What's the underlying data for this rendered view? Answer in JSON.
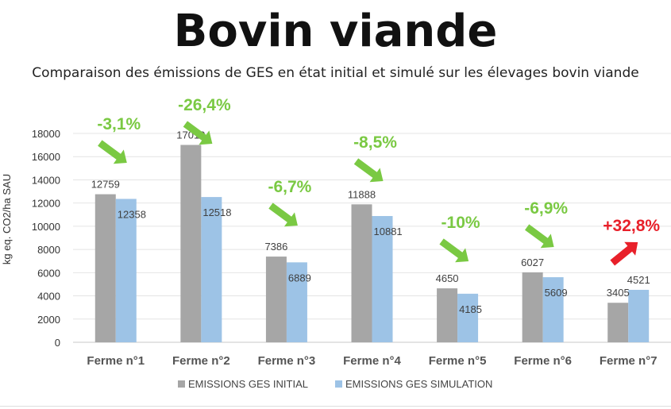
{
  "page": {
    "title": "Bovin viande",
    "subtitle": "Comparaison des émissions de GES en état initial et simulé sur les élevages bovin viande"
  },
  "colors": {
    "initial": "#a6a6a6",
    "simulation": "#9dc3e6",
    "decrease": "#7ac943",
    "increase": "#e8202a"
  },
  "chart_data": {
    "type": "bar",
    "ylabel": "kg eq. CO2/ha SAU",
    "ylim": [
      0,
      18000
    ],
    "yticks": [
      0,
      2000,
      4000,
      6000,
      8000,
      10000,
      12000,
      14000,
      16000,
      18000
    ],
    "grid": true,
    "legend_position": "bottom",
    "categories": [
      "Ferme n°1",
      "Ferme n°2",
      "Ferme n°3",
      "Ferme n°4",
      "Ferme n°5",
      "Ferme n°6",
      "Ferme n°7"
    ],
    "series": [
      {
        "name": "EMISSIONS GES INITIAL",
        "values": [
          12759,
          17010,
          7386,
          11888,
          4650,
          6027,
          3405
        ]
      },
      {
        "name": "EMISSIONS GES SIMULATION",
        "values": [
          12358,
          12518,
          6889,
          10881,
          4185,
          5609,
          4521
        ]
      }
    ],
    "annotations": [
      {
        "category": "Ferme n°1",
        "text": "-3,1%",
        "direction": "down"
      },
      {
        "category": "Ferme n°2",
        "text": "-26,4%",
        "direction": "down"
      },
      {
        "category": "Ferme n°3",
        "text": "-6,7%",
        "direction": "down"
      },
      {
        "category": "Ferme n°4",
        "text": "-8,5%",
        "direction": "down"
      },
      {
        "category": "Ferme n°5",
        "text": "-10%",
        "direction": "down"
      },
      {
        "category": "Ferme n°6",
        "text": "-6,9%",
        "direction": "down"
      },
      {
        "category": "Ferme n°7",
        "text": "+32,8%",
        "direction": "up"
      }
    ]
  }
}
